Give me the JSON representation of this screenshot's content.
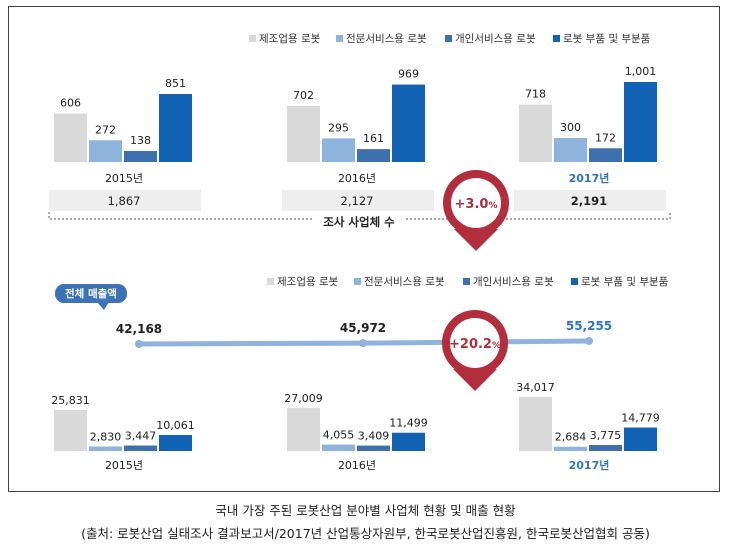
{
  "legend": [
    "제조업용 로봇",
    "전문서비스용 로봇",
    "개인서비스용 로봇",
    "로봇 부품 및 부분품"
  ],
  "colors": {
    "manufacturing": "#d9d9d9",
    "professional_service": "#8eb3dd",
    "personal_service": "#3e6fae",
    "parts": "#1262b3",
    "highlight_year": "#2e75c5",
    "badge_ring": "#b22e3c",
    "badge_text": "#b22e3c",
    "line": "#8eb3dd",
    "box_fill": "#eeeeee",
    "callout_fill": "#3c72b6"
  },
  "chart_data": [
    {
      "type": "bar",
      "categories": [
        "2015년",
        "2016년",
        "2017년"
      ],
      "series": [
        {
          "name": "제조업용 로봇",
          "values": [
            606,
            702,
            718
          ]
        },
        {
          "name": "전문서비스용 로봇",
          "values": [
            272,
            295,
            300
          ]
        },
        {
          "name": "개인서비스용 로봇",
          "values": [
            138,
            161,
            172
          ]
        },
        {
          "name": "로봇 부품 및 부분품",
          "values": [
            851,
            969,
            1001
          ]
        }
      ],
      "value_labels": [
        [
          "606",
          "272",
          "138",
          "851"
        ],
        [
          "702",
          "295",
          "161",
          "969"
        ],
        [
          "718",
          "300",
          "172",
          "1,001"
        ]
      ],
      "totals": [
        "1,867",
        "2,127",
        "2,191"
      ],
      "totals_label": "조사 사업체 수",
      "growth_badge": {
        "value": "+3.0",
        "unit": "%"
      },
      "highlight_category": 2
    },
    {
      "type": "bar",
      "categories": [
        "2015년",
        "2016년",
        "2017년"
      ],
      "series": [
        {
          "name": "제조업용 로봇",
          "values": [
            25831,
            27009,
            34017
          ]
        },
        {
          "name": "전문서비스용 로봇",
          "values": [
            2830,
            4055,
            2684
          ]
        },
        {
          "name": "개인서비스용 로봇",
          "values": [
            3447,
            3409,
            3775
          ]
        },
        {
          "name": "로봇 부품 및 부분품",
          "values": [
            10061,
            11499,
            14779
          ]
        }
      ],
      "value_labels": [
        [
          "25,831",
          "2,830",
          "3,447",
          "10,061"
        ],
        [
          "27,009",
          "4,055",
          "3,409",
          "11,499"
        ],
        [
          "34,017",
          "2,684",
          "3,775",
          "14,779"
        ]
      ],
      "highlight_category": 2
    },
    {
      "type": "line",
      "series": [
        {
          "name": "전체 매출액",
          "values": [
            42168,
            45972,
            55255
          ]
        }
      ],
      "value_labels": [
        "42,168",
        "45,972",
        "55,255"
      ],
      "callout_label": "전체 매출액",
      "growth_badge": {
        "value": "+20.2",
        "unit": "%"
      }
    }
  ],
  "caption": {
    "line1": "국내 가장 주된 로봇산업 분야별 사업체 현황 및 매출 현황",
    "line2": "(출처: 로봇산업 실태조사 결과보고서/2017년 산업통상자원부, 한국로봇산업진흥원, 한국로봇산업협회 공동)"
  }
}
